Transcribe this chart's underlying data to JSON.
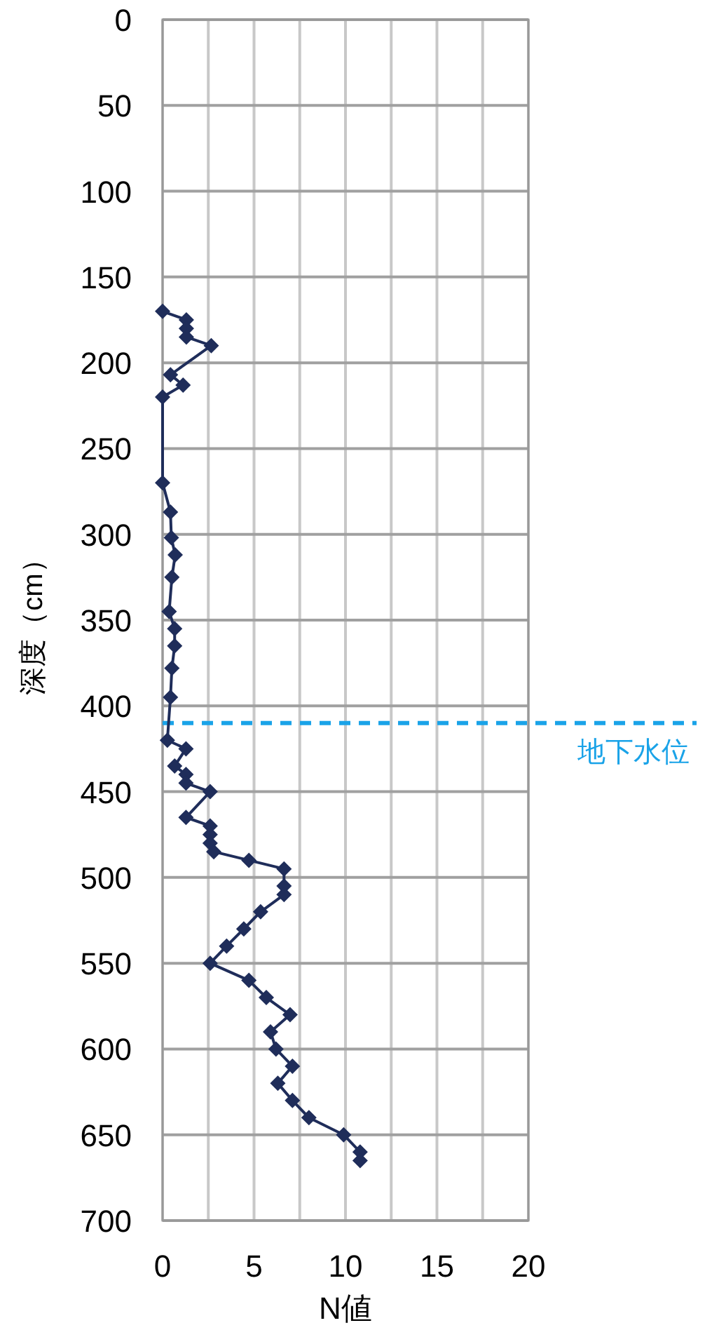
{
  "chart_data": {
    "type": "line",
    "xlabel": "N値",
    "ylabel": "深度（cm）",
    "x": [
      0,
      1.3,
      1.3,
      1.3,
      2.66,
      0.43,
      1.12,
      0,
      0,
      0.43,
      0.48,
      0.69,
      0.51,
      0.36,
      0.66,
      0.66,
      0.51,
      0.43,
      0.26,
      1.28,
      0.66,
      1.28,
      1.28,
      2.6,
      1.28,
      2.6,
      2.6,
      2.6,
      2.8,
      4.72,
      6.64,
      6.64,
      6.64,
      5.36,
      4.44,
      3.5,
      2.6,
      4.72,
      5.67,
      6.97,
      5.9,
      6.2,
      7.1,
      6.3,
      7.1,
      8.0,
      9.9,
      10.8,
      10.8
    ],
    "series": [
      {
        "color": "#1f2d5a",
        "values": [
          170,
          175,
          180,
          185,
          190,
          207,
          213,
          220,
          270,
          287,
          302,
          312,
          325,
          345,
          355,
          365,
          378,
          395,
          420,
          425,
          435,
          440,
          445,
          450,
          465,
          470,
          475,
          480,
          485,
          490,
          495,
          505,
          510,
          520,
          530,
          540,
          550,
          560,
          570,
          580,
          590,
          600,
          610,
          620,
          630,
          640,
          650,
          660,
          665
        ]
      }
    ],
    "xlim": [
      0,
      20
    ],
    "xticks": [
      0,
      {
        "value": 2.5,
        "label": null
      },
      5,
      {
        "value": 7.5,
        "label": null
      },
      10,
      {
        "value": 12.5,
        "label": null
      },
      15,
      {
        "value": 17.5,
        "label": null
      },
      20
    ],
    "ylim": [
      700,
      0
    ],
    "yticks": [
      0,
      50,
      100,
      150,
      200,
      250,
      300,
      350,
      400,
      450,
      500,
      550,
      600,
      650,
      700
    ],
    "grid": true,
    "marker": "diamond",
    "line_style": "solid",
    "ref_lines": [
      {
        "axis": "y",
        "value": 410,
        "label": "地下水位",
        "color": "#1aa3e8",
        "line_style": "dashed"
      }
    ]
  }
}
